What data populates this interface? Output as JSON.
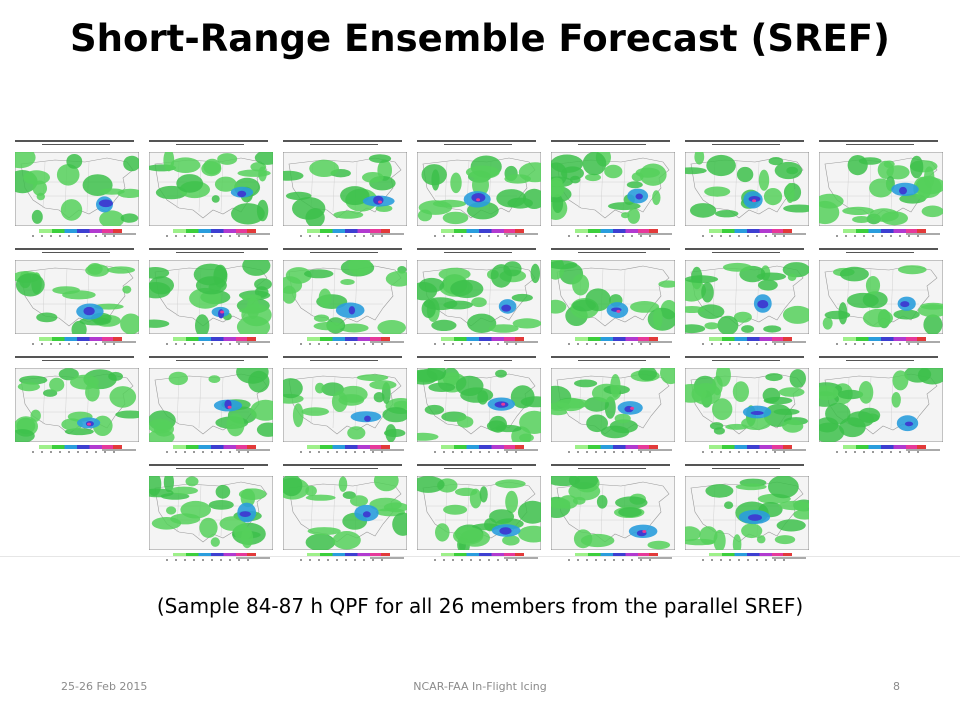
{
  "slide": {
    "title": "Short-Range Ensemble Forecast (SREF)",
    "caption": "(Sample 84-87 h QPF for all 26 members from the parallel SREF)",
    "footer": {
      "date": "25-26 Feb 2015",
      "center": "NCAR-FAA In-Flight Icing",
      "page": "8"
    }
  },
  "figure": {
    "kind": "grid of ensemble QPF maps",
    "member_count": 26,
    "layout_rows": [
      7,
      7,
      7,
      5
    ],
    "colorbar": [
      "#ffffff",
      "#9ef08a",
      "#3ccf3c",
      "#2a9ddd",
      "#3d3fd1",
      "#b13ad0",
      "#e7399a",
      "#e23a3a"
    ]
  }
}
